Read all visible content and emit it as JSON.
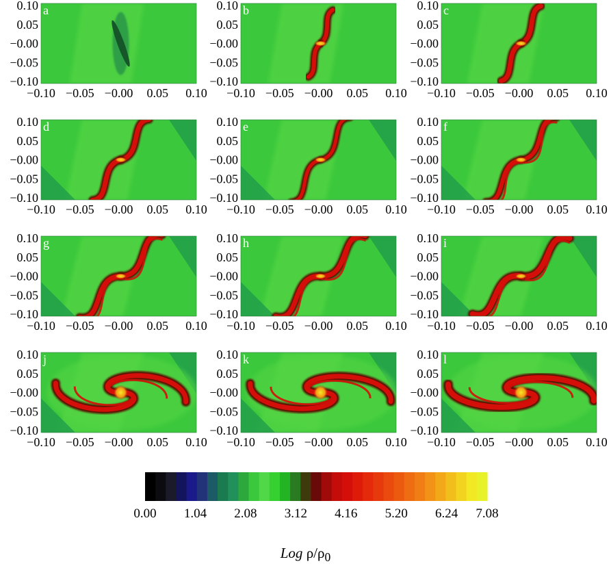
{
  "chart_data": {
    "type": "heatmap",
    "panel_labels": [
      "a",
      "b",
      "c",
      "d",
      "e",
      "f",
      "g",
      "h",
      "i",
      "j",
      "k",
      "l"
    ],
    "x_ticks": [
      "−0.10",
      "−0.05",
      "−0.00",
      "0.05",
      "0.10"
    ],
    "y_ticks": [
      "0.10",
      "0.05",
      "−0.00",
      "−0.05",
      "−0.10"
    ],
    "xlim": [
      -0.1,
      0.1
    ],
    "ylim": [
      -0.1,
      0.1
    ],
    "colorbar": {
      "ticks": [
        "0.00",
        "1.04",
        "2.08",
        "3.12",
        "4.16",
        "5.20",
        "6.24",
        "7.08"
      ],
      "range": [
        0.0,
        7.08
      ],
      "label_italic": "Log",
      "label_rest": "ρ/ρ",
      "label_sub": "0"
    },
    "colors": {
      "background_green": "#3cc83c",
      "light_green": "#55d645",
      "dark_green": "#1e9a4c",
      "arm_red": "#d40e08",
      "arm_dark": "#5a0a04",
      "core_yellow": "#f7e62a"
    }
  }
}
